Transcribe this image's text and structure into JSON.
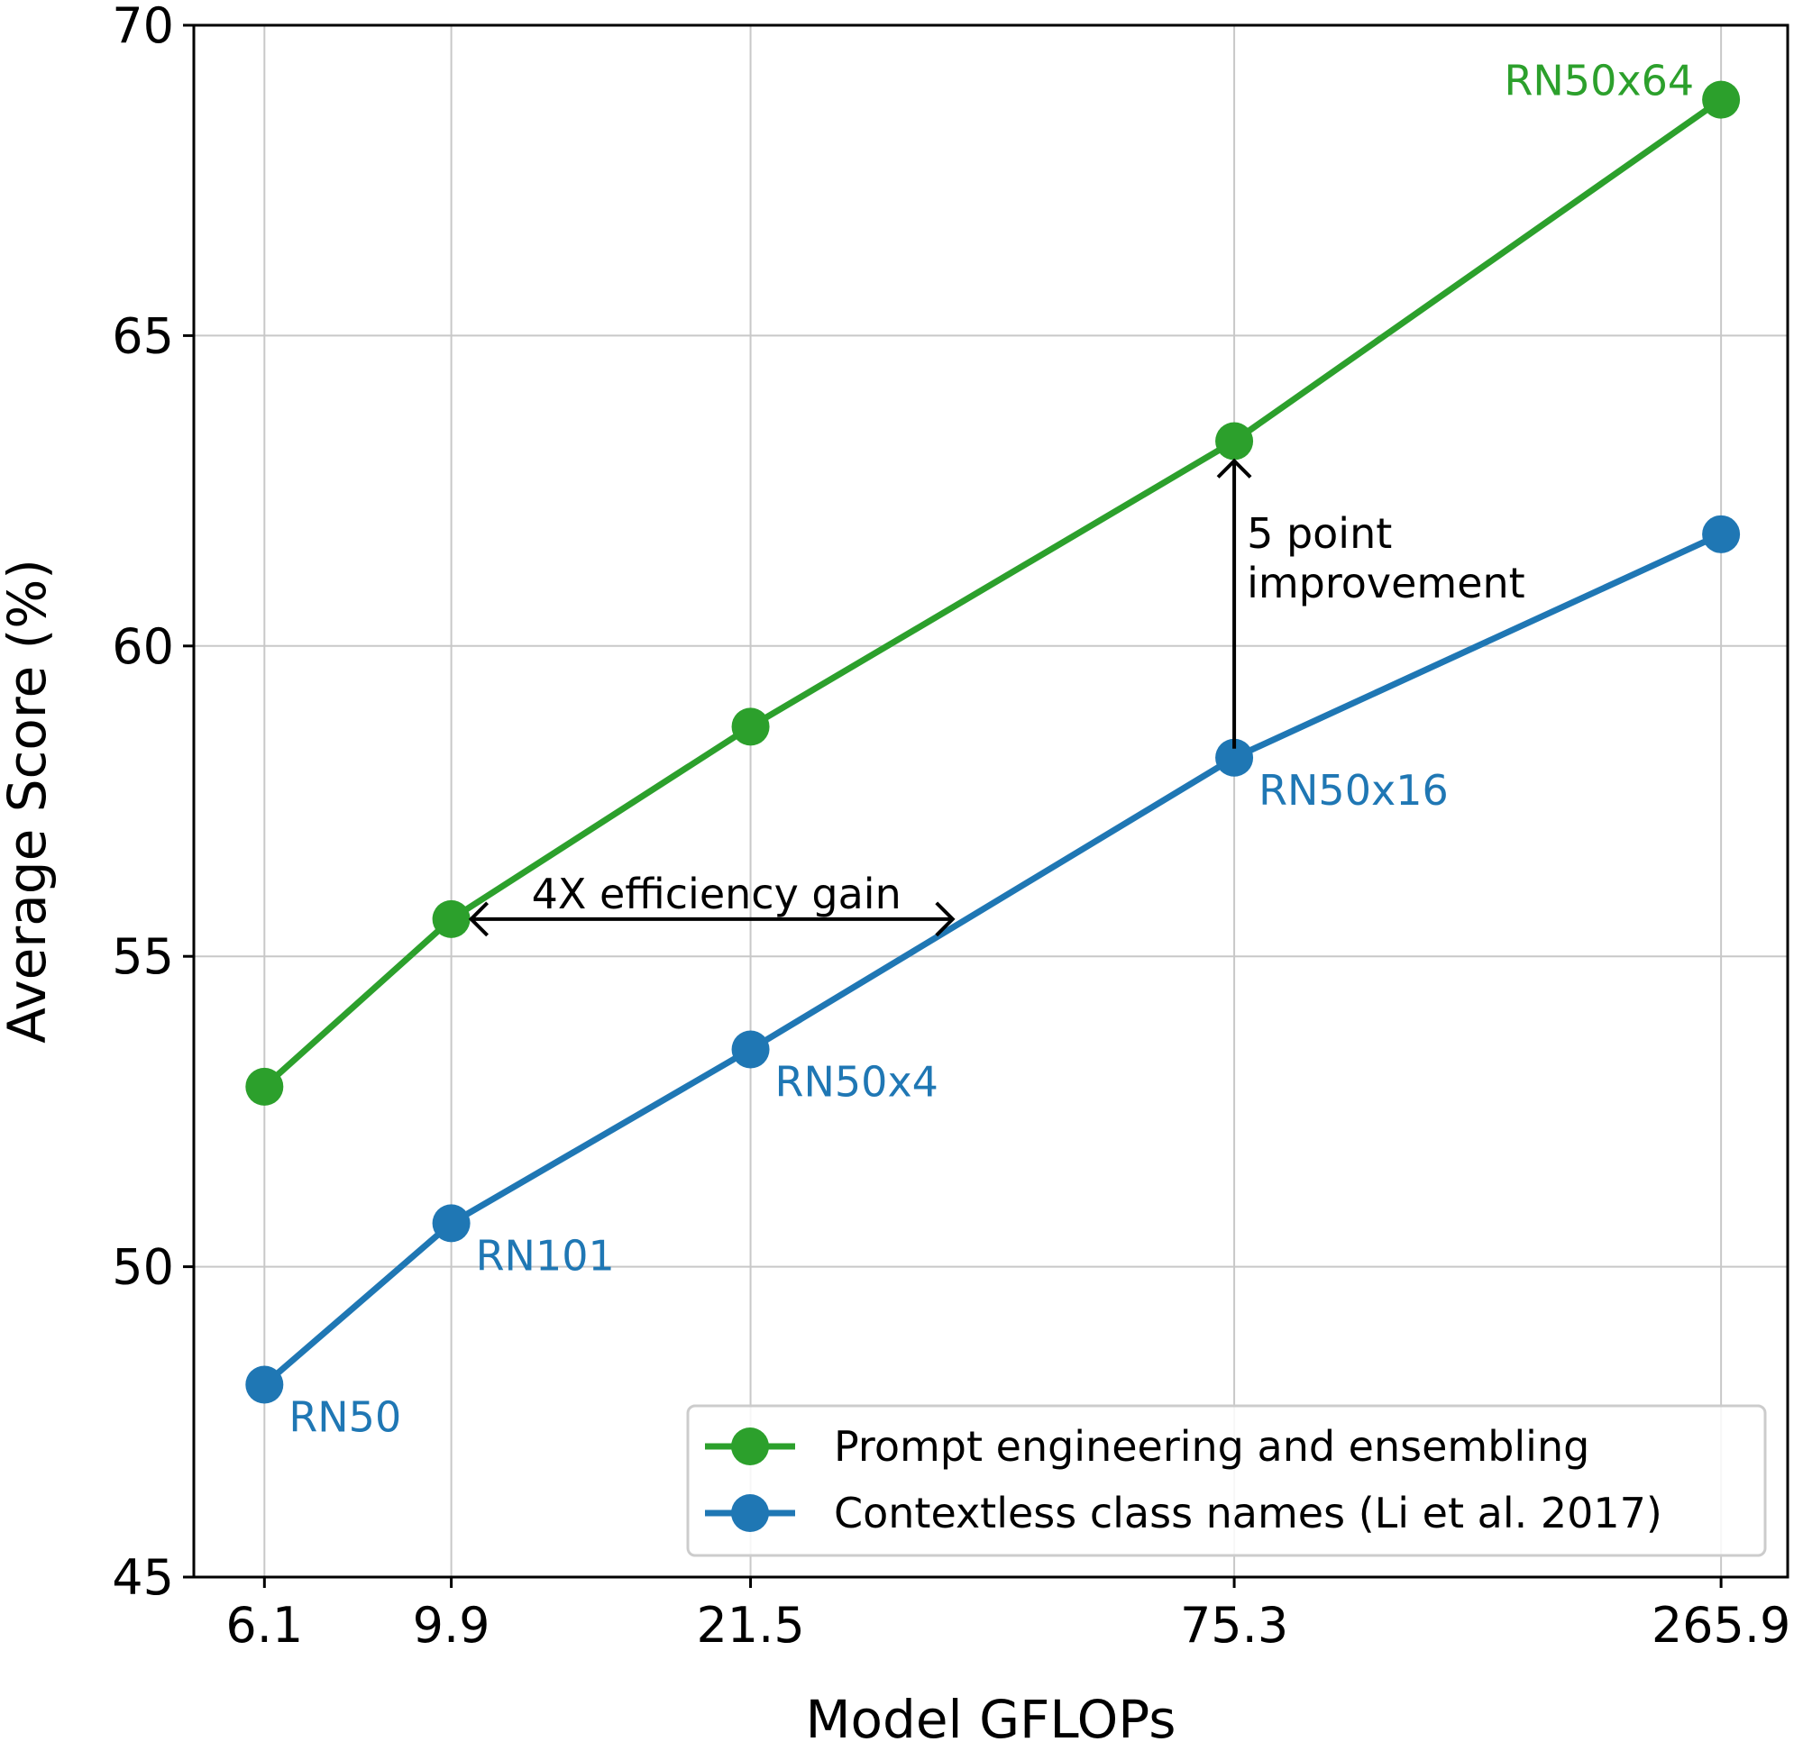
{
  "chart_data": {
    "type": "line",
    "xlabel": "Model GFLOPs",
    "ylabel": "Average Score (%)",
    "x_scale": "log",
    "xlim": [
      5.08,
      316
    ],
    "ylim": [
      45,
      70
    ],
    "grid": true,
    "x_ticks": [
      "6.1",
      "9.9",
      "21.5",
      "75.3",
      "265.9"
    ],
    "y_ticks": [
      "45",
      "50",
      "55",
      "60",
      "65",
      "70"
    ],
    "x": [
      6.1,
      9.9,
      21.5,
      75.3,
      265.9
    ],
    "series": [
      {
        "name": "Prompt engineering and ensembling",
        "color": "#2ca02c",
        "values": [
          52.9,
          55.6,
          58.7,
          63.3,
          68.8
        ]
      },
      {
        "name": "Contextless class names (Li et al. 2017)",
        "color": "#1f77b4",
        "values": [
          48.1,
          50.7,
          53.5,
          58.2,
          61.8
        ]
      }
    ],
    "point_labels": [
      {
        "text": "RN50",
        "x": 6.1,
        "y": 48.1,
        "color": "#1f77b4"
      },
      {
        "text": "RN101",
        "x": 9.9,
        "y": 50.7,
        "color": "#1f77b4"
      },
      {
        "text": "RN50x4",
        "x": 21.5,
        "y": 53.5,
        "color": "#1f77b4"
      },
      {
        "text": "RN50x16",
        "x": 75.3,
        "y": 58.2,
        "color": "#1f77b4"
      },
      {
        "text": "RN50x64",
        "x": 265.9,
        "y": 68.8,
        "color": "#2ca02c"
      }
    ],
    "annotations": [
      {
        "text": "4X efficiency gain",
        "arrow_from": [
          9.9,
          55.6
        ],
        "arrow_to": [
          36.3,
          55.6
        ]
      },
      {
        "text_lines": [
          "5 point",
          "improvement"
        ],
        "arrow_from": [
          75.3,
          58.2
        ],
        "arrow_to": [
          75.3,
          63.3
        ]
      }
    ],
    "legend_position": "lower-right"
  }
}
